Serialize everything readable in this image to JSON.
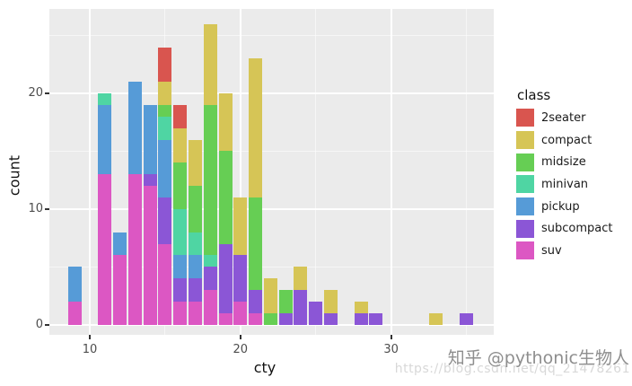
{
  "figure": {
    "x_axis_label": "cty",
    "y_axis_label": "count",
    "legend_title": "class"
  },
  "watermark": {
    "site_credit": "知乎 @pythonic生物人",
    "url_credit": "https://blog.csdn.net/qq_21478261"
  },
  "chart_data": {
    "type": "bar",
    "subtype": "stacked-histogram",
    "title": "",
    "xlabel": "cty",
    "ylabel": "count",
    "legend_title": "class",
    "legend_position": "right",
    "grid": true,
    "panel_background": "#EBEBEB",
    "grid_major_color": "#FFFFFF",
    "xlim": [
      7.3,
      36.8
    ],
    "ylim": [
      0,
      26
    ],
    "x_ticks": [
      10,
      20,
      30
    ],
    "x_minor_ticks": [
      15,
      25,
      35
    ],
    "y_ticks": [
      0,
      10,
      20
    ],
    "y_minor_ticks": [
      5,
      15,
      25
    ],
    "bar_width": 0.9,
    "x": [
      9,
      11,
      12,
      13,
      14,
      15,
      16,
      17,
      18,
      19,
      20,
      21,
      22,
      23,
      24,
      25,
      26,
      28,
      29,
      33,
      35
    ],
    "stack_order_bottom_to_top": [
      "suv",
      "subcompact",
      "pickup",
      "minivan",
      "midsize",
      "compact",
      "2seater"
    ],
    "series": [
      {
        "name": "2seater",
        "color": "#D9554F",
        "values": [
          0,
          0,
          0,
          0,
          0,
          3,
          2,
          0,
          0,
          0,
          0,
          0,
          0,
          0,
          0,
          0,
          0,
          0,
          0,
          0,
          0
        ]
      },
      {
        "name": "compact",
        "color": "#D6C556",
        "values": [
          0,
          0,
          0,
          0,
          0,
          2,
          3,
          4,
          7,
          5,
          5,
          12,
          3,
          0,
          2,
          0,
          2,
          1,
          0,
          1,
          0
        ]
      },
      {
        "name": "midsize",
        "color": "#66CE54",
        "values": [
          0,
          0,
          0,
          0,
          0,
          1,
          4,
          4,
          13,
          8,
          0,
          8,
          1,
          2,
          0,
          0,
          0,
          0,
          0,
          0,
          0
        ]
      },
      {
        "name": "minivan",
        "color": "#4FD5A3",
        "values": [
          0,
          1,
          0,
          0,
          0,
          2,
          4,
          2,
          1,
          0,
          0,
          0,
          0,
          0,
          0,
          0,
          0,
          0,
          0,
          0,
          0
        ]
      },
      {
        "name": "pickup",
        "color": "#569BD7",
        "values": [
          3,
          6,
          2,
          8,
          6,
          5,
          2,
          2,
          0,
          0,
          0,
          0,
          0,
          0,
          0,
          0,
          0,
          0,
          0,
          0,
          0
        ]
      },
      {
        "name": "subcompact",
        "color": "#8B56D6",
        "values": [
          0,
          0,
          0,
          0,
          1,
          4,
          2,
          2,
          2,
          6,
          4,
          2,
          0,
          1,
          3,
          2,
          1,
          1,
          1,
          0,
          1
        ]
      },
      {
        "name": "suv",
        "color": "#DC57C3",
        "values": [
          2,
          13,
          6,
          13,
          12,
          7,
          2,
          2,
          3,
          1,
          2,
          1,
          0,
          0,
          0,
          0,
          0,
          0,
          0,
          0,
          0
        ]
      }
    ],
    "bar_totals": {
      "9": 5,
      "11": 20,
      "12": 8,
      "13": 21,
      "14": 19,
      "15": 24,
      "16": 19,
      "17": 16,
      "18": 26,
      "19": 20,
      "20": 11,
      "21": 23,
      "22": 4,
      "23": 3,
      "24": 5,
      "25": 2,
      "26": 3,
      "28": 2,
      "29": 1,
      "33": 1,
      "35": 1
    }
  }
}
